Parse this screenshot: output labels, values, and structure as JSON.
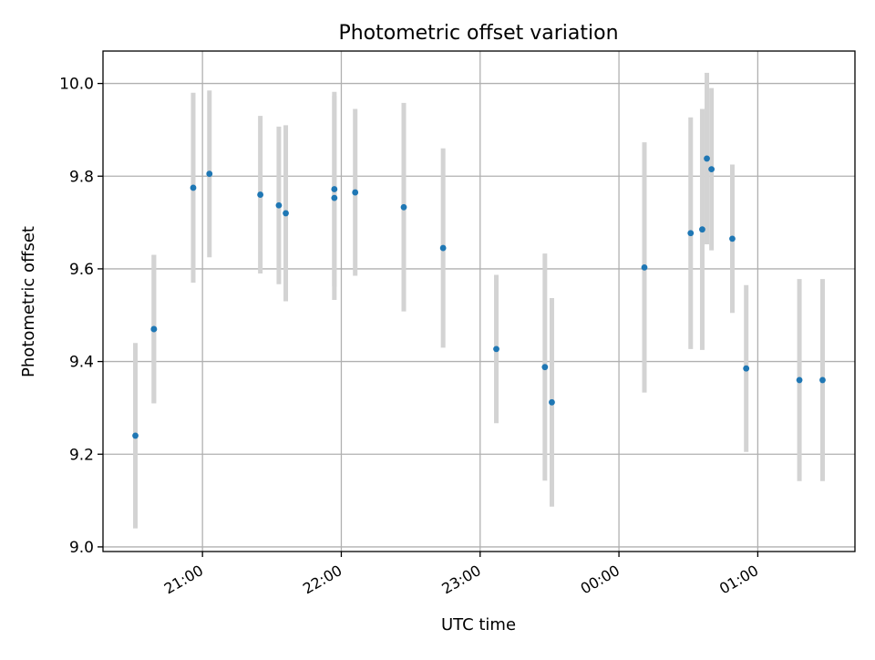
{
  "chart_data": {
    "type": "scatter",
    "title": "Photometric offset variation",
    "xlabel": "UTC time",
    "ylabel": "Photometric offset",
    "x_scale": "time",
    "xlim": [
      "20:17",
      "01:42"
    ],
    "ylim": [
      8.99,
      10.07
    ],
    "x_ticks": [
      "21:00",
      "22:00",
      "23:00",
      "00:00",
      "01:00"
    ],
    "y_ticks": [
      "9.0",
      "9.2",
      "9.4",
      "9.6",
      "9.8",
      "10.0"
    ],
    "grid": true,
    "legend": "none",
    "colors": {
      "point": "#1f77b4",
      "errorbar": "#d3d3d3",
      "grid": "#b0b0b0"
    },
    "series": [
      {
        "points": [
          {
            "x": "20:31",
            "y": 9.24,
            "yerr": 0.2
          },
          {
            "x": "20:39",
            "y": 9.47,
            "yerr": 0.16
          },
          {
            "x": "20:39",
            "y": 9.47,
            "yerr": 0.16
          },
          {
            "x": "20:56",
            "y": 9.775,
            "yerr": 0.205
          },
          {
            "x": "21:03",
            "y": 9.805,
            "yerr": 0.18
          },
          {
            "x": "21:25",
            "y": 9.76,
            "yerr": 0.17
          },
          {
            "x": "21:33",
            "y": 9.737,
            "yerr": 0.17
          },
          {
            "x": "21:36",
            "y": 9.72,
            "yerr": 0.19
          },
          {
            "x": "21:57",
            "y": 9.772,
            "yerr": 0.21
          },
          {
            "x": "21:57",
            "y": 9.753,
            "yerr": 0.22
          },
          {
            "x": "22:06",
            "y": 9.765,
            "yerr": 0.18
          },
          {
            "x": "22:27",
            "y": 9.733,
            "yerr": 0.225
          },
          {
            "x": "22:44",
            "y": 9.645,
            "yerr": 0.215
          },
          {
            "x": "23:07",
            "y": 9.427,
            "yerr": 0.16
          },
          {
            "x": "23:28",
            "y": 9.388,
            "yerr": 0.245
          },
          {
            "x": "23:31",
            "y": 9.312,
            "yerr": 0.225
          },
          {
            "x": "00:11",
            "y": 9.603,
            "yerr": 0.27
          },
          {
            "x": "00:31",
            "y": 9.677,
            "yerr": 0.25
          },
          {
            "x": "00:36",
            "y": 9.685,
            "yerr": 0.26
          },
          {
            "x": "00:38",
            "y": 9.838,
            "yerr": 0.185
          },
          {
            "x": "00:40",
            "y": 9.815,
            "yerr": 0.175
          },
          {
            "x": "00:49",
            "y": 9.665,
            "yerr": 0.16
          },
          {
            "x": "00:55",
            "y": 9.385,
            "yerr": 0.18
          },
          {
            "x": "01:18",
            "y": 9.36,
            "yerr": 0.218
          },
          {
            "x": "01:28",
            "y": 9.36,
            "yerr": 0.218
          }
        ]
      }
    ]
  }
}
